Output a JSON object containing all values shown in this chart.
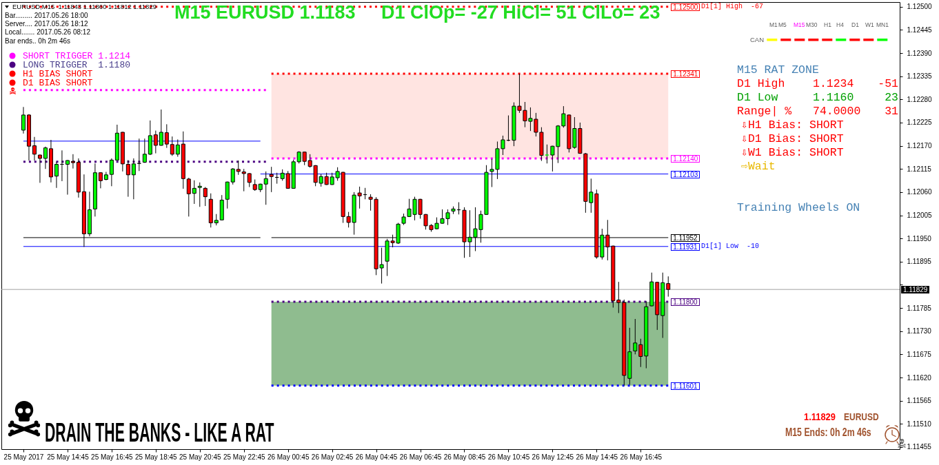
{
  "chart_data": {
    "type": "candlestick",
    "title": "M15 EURUSD 1.1183",
    "subtitle": "D1 ClOp= -27 HiCl= 51 ClLo= 23",
    "x": [
      "2017-05-25T12:45",
      "2017-05-25T13:00",
      "2017-05-25T13:15",
      "2017-05-25T13:30",
      "2017-05-25T13:45",
      "2017-05-25T14:00",
      "2017-05-25T14:15",
      "2017-05-25T14:30",
      "2017-05-25T14:45",
      "2017-05-25T15:00",
      "2017-05-25T15:15",
      "2017-05-25T15:30",
      "2017-05-25T15:45",
      "2017-05-25T16:00",
      "2017-05-25T16:15",
      "2017-05-25T16:30",
      "2017-05-25T16:45",
      "2017-05-25T17:00",
      "2017-05-25T17:15",
      "2017-05-25T17:30",
      "2017-05-25T17:45",
      "2017-05-25T18:00",
      "2017-05-25T18:15",
      "2017-05-25T18:30",
      "2017-05-25T18:45",
      "2017-05-25T19:00",
      "2017-05-25T19:15",
      "2017-05-25T19:30",
      "2017-05-25T19:45",
      "2017-05-25T20:00",
      "2017-05-25T20:15",
      "2017-05-25T20:30",
      "2017-05-25T20:45",
      "2017-05-25T21:00",
      "2017-05-25T21:15",
      "2017-05-25T21:30",
      "2017-05-25T21:45",
      "2017-05-25T22:00",
      "2017-05-25T22:15",
      "2017-05-25T22:30",
      "2017-05-25T22:45",
      "2017-05-25T23:00",
      "2017-05-25T23:15",
      "2017-05-25T23:30",
      "2017-05-25T23:45",
      "2017-05-26T00:00",
      "2017-05-26T00:15",
      "2017-05-26T00:30",
      "2017-05-26T00:45",
      "2017-05-26T01:00",
      "2017-05-26T01:15",
      "2017-05-26T01:30",
      "2017-05-26T01:45",
      "2017-05-26T02:00",
      "2017-05-26T02:15",
      "2017-05-26T02:30",
      "2017-05-26T02:45",
      "2017-05-26T03:00",
      "2017-05-26T03:15",
      "2017-05-26T03:30",
      "2017-05-26T03:45",
      "2017-05-26T04:00",
      "2017-05-26T04:15",
      "2017-05-26T04:30",
      "2017-05-26T04:45",
      "2017-05-26T05:00",
      "2017-05-26T05:15",
      "2017-05-26T05:30",
      "2017-05-26T05:45",
      "2017-05-26T06:00",
      "2017-05-26T06:15",
      "2017-05-26T06:30",
      "2017-05-26T06:45",
      "2017-05-26T07:00",
      "2017-05-26T07:15",
      "2017-05-26T07:30",
      "2017-05-26T07:45",
      "2017-05-26T08:00",
      "2017-05-26T08:15",
      "2017-05-26T08:30",
      "2017-05-26T08:45",
      "2017-05-26T09:00",
      "2017-05-26T09:15",
      "2017-05-26T09:30",
      "2017-05-26T09:45",
      "2017-05-26T10:00",
      "2017-05-26T10:15",
      "2017-05-26T10:30",
      "2017-05-26T10:45",
      "2017-05-26T11:00",
      "2017-05-26T11:15",
      "2017-05-26T11:30",
      "2017-05-26T11:45",
      "2017-05-26T12:00",
      "2017-05-26T12:15",
      "2017-05-26T12:30",
      "2017-05-26T12:45",
      "2017-05-26T13:00",
      "2017-05-26T13:15",
      "2017-05-26T13:30",
      "2017-05-26T13:45",
      "2017-05-26T14:00",
      "2017-05-26T14:15",
      "2017-05-26T14:30",
      "2017-05-26T14:45",
      "2017-05-26T15:00",
      "2017-05-26T15:15",
      "2017-05-26T15:30",
      "2017-05-26T15:45",
      "2017-05-26T16:00",
      "2017-05-26T16:15",
      "2017-05-26T16:30",
      "2017-05-26T16:45",
      "2017-05-26T17:00",
      "2017-05-26T17:15",
      "2017-05-26T17:30",
      "2017-05-26T17:45",
      "2017-05-26T18:00"
    ],
    "ohlc": [
      [
        1.12207,
        1.12262,
        1.12199,
        1.12243
      ],
      [
        1.12243,
        1.12245,
        1.12135,
        1.12169
      ],
      [
        1.1217,
        1.12191,
        1.12135,
        1.1215
      ],
      [
        1.12148,
        1.12149,
        1.12082,
        1.1214
      ],
      [
        1.1214,
        1.12168,
        1.12115,
        1.12165
      ],
      [
        1.12163,
        1.12184,
        1.12083,
        1.12096
      ],
      [
        1.12098,
        1.12132,
        1.1207,
        1.12126
      ],
      [
        1.12126,
        1.12159,
        1.12086,
        1.12126
      ],
      [
        1.12126,
        1.12136,
        1.12054,
        1.12135
      ],
      [
        1.12133,
        1.1215,
        1.12116,
        1.1213
      ],
      [
        1.12131,
        1.1214,
        1.12047,
        1.1206
      ],
      [
        1.12061,
        1.12102,
        1.1193,
        1.11961
      ],
      [
        1.11961,
        1.12061,
        1.11955,
        1.12018
      ],
      [
        1.1202,
        1.12128,
        1.12002,
        1.12106
      ],
      [
        1.12106,
        1.12107,
        1.12069,
        1.12087
      ],
      [
        1.1209,
        1.12108,
        1.12088,
        1.12101
      ],
      [
        1.12102,
        1.1214,
        1.12074,
        1.12136
      ],
      [
        1.12136,
        1.1222,
        1.12135,
        1.122
      ],
      [
        1.12202,
        1.12203,
        1.12109,
        1.12127
      ],
      [
        1.12126,
        1.12136,
        1.12049,
        1.12101
      ],
      [
        1.12101,
        1.1214,
        1.12043,
        1.12127
      ],
      [
        1.12128,
        1.12187,
        1.1211,
        1.12128
      ],
      [
        1.12131,
        1.12187,
        1.1213,
        1.1215
      ],
      [
        1.1215,
        1.1223,
        1.12148,
        1.12194
      ],
      [
        1.12196,
        1.12206,
        1.12152,
        1.12171
      ],
      [
        1.12171,
        1.12256,
        1.1217,
        1.12202
      ],
      [
        1.12201,
        1.12221,
        1.12165,
        1.12174
      ],
      [
        1.12173,
        1.12192,
        1.12146,
        1.1215
      ],
      [
        1.1215,
        1.12185,
        1.12144,
        1.12172
      ],
      [
        1.12174,
        1.12204,
        1.12068,
        1.12092
      ],
      [
        1.12091,
        1.12094,
        1.12002,
        1.12056
      ],
      [
        1.12057,
        1.12088,
        1.12032,
        1.12069
      ],
      [
        1.12071,
        1.12083,
        1.12025,
        1.12074
      ],
      [
        1.12069,
        1.12072,
        1.12027,
        1.12049
      ],
      [
        1.12043,
        1.12057,
        1.11976,
        1.11987
      ],
      [
        1.11987,
        1.12008,
        1.11981,
        1.11993
      ],
      [
        1.11994,
        1.12053,
        1.11993,
        1.12041
      ],
      [
        1.12043,
        1.12085,
        1.12021,
        1.12084
      ],
      [
        1.12084,
        1.12117,
        1.12078,
        1.12115
      ],
      [
        1.12114,
        1.12135,
        1.12101,
        1.12109
      ],
      [
        1.12108,
        1.12115,
        1.12062,
        1.12104
      ],
      [
        1.12104,
        1.12105,
        1.12072,
        1.12083
      ],
      [
        1.12078,
        1.1209,
        1.12063,
        1.12066
      ],
      [
        1.12066,
        1.1208,
        1.1206,
        1.12079
      ],
      [
        1.12079,
        1.12109,
        1.1203,
        1.12092
      ],
      [
        1.12102,
        1.1212,
        1.1206,
        1.12097
      ],
      [
        1.12095,
        1.12106,
        1.1208,
        1.12095
      ],
      [
        1.12092,
        1.12114,
        1.12087,
        1.12105
      ],
      [
        1.12104,
        1.1211,
        1.12068,
        1.12069
      ],
      [
        1.12069,
        1.12137,
        1.12068,
        1.12132
      ],
      [
        1.12132,
        1.12157,
        1.12128,
        1.12155
      ],
      [
        1.12155,
        1.12156,
        1.12124,
        1.12133
      ],
      [
        1.12135,
        1.1215,
        1.12118,
        1.12121
      ],
      [
        1.12123,
        1.12124,
        1.12074,
        1.12083
      ],
      [
        1.12081,
        1.12103,
        1.12073,
        1.12097
      ],
      [
        1.12097,
        1.12106,
        1.12077,
        1.12078
      ],
      [
        1.12078,
        1.12106,
        1.12077,
        1.12096
      ],
      [
        1.12094,
        1.12119,
        1.12087,
        1.12109
      ],
      [
        1.12107,
        1.12108,
        1.11987,
        1.12002
      ],
      [
        1.12002,
        1.12013,
        1.11976,
        1.11988
      ],
      [
        1.11988,
        1.1206,
        1.11959,
        1.12053
      ],
      [
        1.12058,
        1.12073,
        1.12021,
        1.12051
      ],
      [
        1.12054,
        1.1207,
        1.12043,
        1.12054
      ],
      [
        1.12048,
        1.12055,
        1.12016,
        1.12043
      ],
      [
        1.12043,
        1.12048,
        1.11863,
        1.11878
      ],
      [
        1.1188,
        1.11928,
        1.11843,
        1.11888
      ],
      [
        1.11896,
        1.11949,
        1.11861,
        1.11944
      ],
      [
        1.11944,
        1.11959,
        1.11929,
        1.1194
      ],
      [
        1.11939,
        1.11987,
        1.11937,
        1.11984
      ],
      [
        1.11986,
        1.12009,
        1.11982,
        1.12001
      ],
      [
        1.12002,
        1.12044,
        1.12001,
        1.1202
      ],
      [
        1.12007,
        1.12049,
        1.11993,
        1.12043
      ],
      [
        1.12043,
        1.12044,
        1.11997,
        1.12007
      ],
      [
        1.12007,
        1.12008,
        1.11971,
        1.1198
      ],
      [
        1.11981,
        1.11984,
        1.11966,
        1.11971
      ],
      [
        1.11973,
        1.12,
        1.11972,
        1.11986
      ],
      [
        1.11986,
        1.12019,
        1.11985,
        1.11997
      ],
      [
        1.11997,
        1.12019,
        1.11982,
        1.12011
      ],
      [
        1.12015,
        1.12026,
        1.12008,
        1.1202
      ],
      [
        1.12018,
        1.12036,
        1.12007,
        1.12018
      ],
      [
        1.12017,
        1.12024,
        1.11904,
        1.11942
      ],
      [
        1.11942,
        1.12017,
        1.11906,
        1.11953
      ],
      [
        1.11953,
        1.12024,
        1.1192,
        1.11973
      ],
      [
        1.11971,
        1.12016,
        1.1194,
        1.12007
      ],
      [
        1.12007,
        1.12124,
        1.12006,
        1.12107
      ],
      [
        1.12109,
        1.12139,
        1.12072,
        1.12114
      ],
      [
        1.12114,
        1.1218,
        1.12091,
        1.12163
      ],
      [
        1.12163,
        1.12194,
        1.12148,
        1.12184
      ],
      [
        1.12183,
        1.12242,
        1.12181,
        1.12183
      ],
      [
        1.12183,
        1.12273,
        1.12169,
        1.12264
      ],
      [
        1.12264,
        1.12341,
        1.12248,
        1.12254
      ],
      [
        1.12254,
        1.12274,
        1.12214,
        1.12229
      ],
      [
        1.12228,
        1.12261,
        1.12205,
        1.12235
      ],
      [
        1.12233,
        1.12248,
        1.12192,
        1.12202
      ],
      [
        1.12202,
        1.12214,
        1.12134,
        1.12147
      ],
      [
        1.12148,
        1.12173,
        1.12128,
        1.12148
      ],
      [
        1.12148,
        1.1217,
        1.12109,
        1.12169
      ],
      [
        1.12168,
        1.12219,
        1.12129,
        1.12217
      ],
      [
        1.12217,
        1.12264,
        1.12213,
        1.12246
      ],
      [
        1.12243,
        1.12244,
        1.12154,
        1.12163
      ],
      [
        1.12166,
        1.12238,
        1.12163,
        1.12211
      ],
      [
        1.12211,
        1.12225,
        1.12151,
        1.12152
      ],
      [
        1.12151,
        1.12153,
        1.12011,
        1.12038
      ],
      [
        1.12035,
        1.12092,
        1.12011,
        1.1206
      ],
      [
        1.12056,
        1.12066,
        1.11902,
        1.11906
      ],
      [
        1.11906,
        1.11973,
        1.119,
        1.11958
      ],
      [
        1.11958,
        1.11994,
        1.11898,
        1.1193
      ],
      [
        1.11932,
        1.11933,
        1.11786,
        1.11802
      ],
      [
        1.11804,
        1.11847,
        1.11773,
        1.11798
      ],
      [
        1.11798,
        1.11805,
        1.11601,
        1.11625
      ],
      [
        1.11618,
        1.11738,
        1.11603,
        1.11681
      ],
      [
        1.11683,
        1.11759,
        1.11675,
        1.11702
      ],
      [
        1.11698,
        1.11712,
        1.11645,
        1.1167
      ],
      [
        1.11671,
        1.11801,
        1.11642,
        1.11788
      ],
      [
        1.1179,
        1.11869,
        1.11789,
        1.11847
      ],
      [
        1.11846,
        1.11847,
        1.11733,
        1.11769
      ],
      [
        1.11767,
        1.11869,
        1.11714,
        1.11845
      ],
      [
        1.11843,
        1.1186,
        1.11812,
        1.11829
      ]
    ],
    "colors": [
      "#00ff00",
      "#ff0000",
      "#ff0000",
      "#ff0000",
      "#00ff00",
      "#ff0000",
      "#00ff00",
      "#000000",
      "#00ff00",
      "#ff0000",
      "#ff0000",
      "#ff0000",
      "#00ff00",
      "#00ff00",
      "#ff0000",
      "#00ff00",
      "#00ff00",
      "#00ff00",
      "#ff0000",
      "#ff0000",
      "#00ff00",
      "#000000",
      "#00ff00",
      "#00ff00",
      "#ff0000",
      "#00ff00",
      "#ff0000",
      "#ff0000",
      "#00ff00",
      "#ff0000",
      "#ff0000",
      "#00ff00",
      "#00ff00",
      "#ff0000",
      "#ff0000",
      "#00ff00",
      "#00ff00",
      "#00ff00",
      "#00ff00",
      "#ff0000",
      "#ff0000",
      "#ff0000",
      "#ff0000",
      "#00ff00",
      "#00ff00",
      "#ff0000",
      "#000000",
      "#00ff00",
      "#ff0000",
      "#00ff00",
      "#00ff00",
      "#ff0000",
      "#ff0000",
      "#ff0000",
      "#00ff00",
      "#ff0000",
      "#00ff00",
      "#00ff00",
      "#ff0000",
      "#ff0000",
      "#00ff00",
      "#ff0000",
      "#000000",
      "#ff0000",
      "#ff0000",
      "#00ff00",
      "#00ff00",
      "#ff0000",
      "#00ff00",
      "#00ff00",
      "#00ff00",
      "#00ff00",
      "#ff0000",
      "#ff0000",
      "#ff0000",
      "#00ff00",
      "#00ff00",
      "#00ff00",
      "#00ff00",
      "#000000",
      "#ff0000",
      "#00ff00",
      "#00ff00",
      "#00ff00",
      "#00ff00",
      "#00ff00",
      "#00ff00",
      "#00ff00",
      "#000000",
      "#00ff00",
      "#ff0000",
      "#ff0000",
      "#00ff00",
      "#ff0000",
      "#ff0000",
      "#00ff00",
      "#00ff00",
      "#00ff00",
      "#00ff00",
      "#ff0000",
      "#00ff00",
      "#ff0000",
      "#ff0000",
      "#00ff00",
      "#ff0000",
      "#00ff00",
      "#ff0000",
      "#ff0000",
      "#ff0000",
      "#ff0000",
      "#00ff00",
      "#00ff00",
      "#ff0000",
      "#00ff00",
      "#00ff00",
      "#ff0000",
      "#00ff00",
      "#ff0000"
    ],
    "series": [
      {
        "type": "line",
        "x": [
          "2017-05-25T12:45",
          "2017-05-26T18:00"
        ],
        "values": [
          1.125,
          1.125
        ],
        "color": "#ff0000",
        "line_style": "dotted"
      },
      {
        "type": "line",
        "x": [
          "2017-05-25T12:45",
          "2017-05-25T23:45"
        ],
        "values": [
          1.12302,
          1.12302
        ],
        "color": "#ff00ff",
        "line_style": "dotted"
      },
      {
        "type": "line",
        "x": [
          "2017-05-25T12:45",
          "2017-05-25T23:30"
        ],
        "values": [
          1.12181,
          1.12181
        ],
        "color": "#0000ff",
        "line_style": "solid"
      },
      {
        "type": "line",
        "x": [
          "2017-05-25T12:45",
          "2017-05-25T23:45"
        ],
        "values": [
          1.12132,
          1.12132
        ],
        "color": "#4b0082",
        "line_style": "dotted"
      },
      {
        "type": "line",
        "x": [
          "2017-05-25T12:45",
          "2017-05-25T23:30"
        ],
        "values": [
          1.11952,
          1.11952
        ],
        "color": "#000000",
        "line_style": "solid"
      },
      {
        "type": "line",
        "x": [
          "2017-05-25T12:45",
          "2017-05-26T18:00"
        ],
        "values": [
          1.11931,
          1.11931
        ],
        "color": "#0000ff",
        "line_style": "solid"
      },
      {
        "type": "line",
        "x": [
          "2017-05-26T00:00",
          "2017-05-26T18:00"
        ],
        "values": [
          1.12341,
          1.12341
        ],
        "color": "#ff0000",
        "line_style": "dotted"
      },
      {
        "type": "line",
        "x": [
          "2017-05-26T00:00",
          "2017-05-26T18:00"
        ],
        "values": [
          1.1214,
          1.1214
        ],
        "color": "#ff00ff",
        "line_style": "dotted"
      },
      {
        "type": "line",
        "x": [
          "2017-05-25T23:30",
          "2017-05-26T18:00"
        ],
        "values": [
          1.12103,
          1.12103
        ],
        "color": "#0000ff",
        "line_style": "solid"
      },
      {
        "type": "line",
        "x": [
          "2017-05-26T00:00",
          "2017-05-26T18:00"
        ],
        "values": [
          1.11952,
          1.11952
        ],
        "color": "#000000",
        "line_style": "solid"
      },
      {
        "type": "line",
        "x": [
          "2017-05-26T00:00",
          "2017-05-26T18:00"
        ],
        "values": [
          1.118,
          1.118
        ],
        "color": "#4b0082",
        "line_style": "dotted"
      },
      {
        "type": "line",
        "x": [
          "2017-05-26T00:00",
          "2017-05-26T18:00"
        ],
        "values": [
          1.11601,
          1.11601
        ],
        "color": "#0000ff",
        "line_style": "dotted"
      }
    ],
    "bands": [
      {
        "axis": "y",
        "from": 1.1214,
        "to": 1.12341,
        "color": "#ffe4e1"
      },
      {
        "axis": "y",
        "from": 1.11601,
        "to": 1.118,
        "color": "#8fbc8f"
      }
    ],
    "ref_lines": [
      {
        "axis": "y",
        "value": 1.11829,
        "label": "1.11829",
        "color": "#a0a0a0"
      }
    ],
    "annotations": [
      "EURUSD,M15  1.11843 1.11860 1.11812 1.11829",
      "Bar......... 2017.05.26 18:00",
      "Server.... 2017.05.26 18:12",
      "Local....... 2017.05.26 08:12",
      "Bar ends.. 0h 2m 46s",
      "SHORT TRIGGER 1.1214",
      "LONG TRIGGER  1.1180",
      "H1 BIAS SHORT",
      "D1 BIAS SHORT",
      "M1",
      "M5",
      "M15",
      "M30",
      "H1",
      "H4",
      "D1",
      "W1",
      "MN1",
      "CAN",
      "M15 RAT ZONE",
      "D1 High",
      "1.1234",
      "-51",
      "D1 Low",
      "1.1160",
      "23",
      "Range| %",
      "74.0000",
      "31",
      "⇩H1 Bias: SHORT",
      "⇩D1 Bias: SHORT",
      "⇩W1 Bias: SHORT",
      "⇨Wait",
      "Training Wheels ON",
      "DRAIN THE BANKS - LIKE A RAT",
      "1.11829",
      "EURUSD",
      "M15 Ends: 0h 2m 46s",
      "D1[1] High  -67",
      "D1[1] Low  -10",
      {
        "text": "1.12500",
        "x": "2017-05-26T18:00",
        "y": 1.125
      },
      {
        "text": "1.12341",
        "x": "2017-05-26T18:00",
        "y": 1.12341
      },
      {
        "text": "1.12140",
        "x": "2017-05-26T18:00",
        "y": 1.1214
      },
      {
        "text": "1.12103",
        "x": "2017-05-26T18:00",
        "y": 1.12103
      },
      {
        "text": "1.11952",
        "x": "2017-05-26T18:00",
        "y": 1.11952
      },
      {
        "text": "1.11931",
        "x": "2017-05-26T18:00",
        "y": 1.11931
      },
      {
        "text": "1.11800",
        "x": "2017-05-26T18:00",
        "y": 1.118
      },
      {
        "text": "1.11601",
        "x": "2017-05-26T18:00",
        "y": 1.11601
      }
    ],
    "xlim": [
      "2017-05-25T11:45",
      "2017-05-27T04:30"
    ],
    "xticks": [
      {
        "value": "2017-05-25T12:45",
        "label": "25 May 2017"
      },
      {
        "value": "2017-05-25T14:45",
        "label": "25 May 14:45"
      },
      {
        "value": "2017-05-25T16:45",
        "label": "25 May 16:45"
      },
      {
        "value": "2017-05-25T18:45",
        "label": "25 May 18:45"
      },
      {
        "value": "2017-05-25T20:45",
        "label": "25 May 20:45"
      },
      {
        "value": "2017-05-25T22:45",
        "label": "25 May 22:45"
      },
      {
        "value": "2017-05-26T00:45",
        "label": "26 May 00:45"
      },
      {
        "value": "2017-05-26T02:45",
        "label": "26 May 02:45"
      },
      {
        "value": "2017-05-26T04:45",
        "label": "26 May 04:45"
      },
      {
        "value": "2017-05-26T06:45",
        "label": "26 May 06:45"
      },
      {
        "value": "2017-05-26T08:45",
        "label": "26 May 08:45"
      },
      {
        "value": "2017-05-26T10:45",
        "label": "26 May 10:45"
      },
      {
        "value": "2017-05-26T12:45",
        "label": "26 May 12:45"
      },
      {
        "value": "2017-05-26T14:45",
        "label": "26 May 14:45"
      },
      {
        "value": "2017-05-26T16:45",
        "label": "26 May 16:45"
      }
    ],
    "ylim": [
      1.1145,
      1.12511
    ],
    "yticks": [
      {
        "value": 1.125,
        "label": "1.12500"
      },
      {
        "value": 1.12445,
        "label": "1.12445"
      },
      {
        "value": 1.1239,
        "label": "1.12390"
      },
      {
        "value": 1.12335,
        "label": "1.12335"
      },
      {
        "value": 1.1228,
        "label": "1.12280"
      },
      {
        "value": 1.12225,
        "label": "1.12225"
      },
      {
        "value": 1.1217,
        "label": "1.12170"
      },
      {
        "value": 1.12115,
        "label": "1.12115"
      },
      {
        "value": 1.1206,
        "label": "1.12060"
      },
      {
        "value": 1.12005,
        "label": "1.12005"
      },
      {
        "value": 1.1195,
        "label": "1.11950"
      },
      {
        "value": 1.11895,
        "label": "1.11895"
      },
      {
        "value": 1.1184,
        "label": null
      },
      {
        "value": 1.11785,
        "label": "1.11785"
      },
      {
        "value": 1.1173,
        "label": "1.11730"
      },
      {
        "value": 1.11675,
        "label": "1.11675"
      },
      {
        "value": 1.1162,
        "label": "1.11620"
      },
      {
        "value": 1.11565,
        "label": "1.11565"
      },
      {
        "value": 1.1151,
        "label": "1.11510"
      },
      {
        "value": 1.11455,
        "label": "1.11455"
      }
    ]
  }
}
